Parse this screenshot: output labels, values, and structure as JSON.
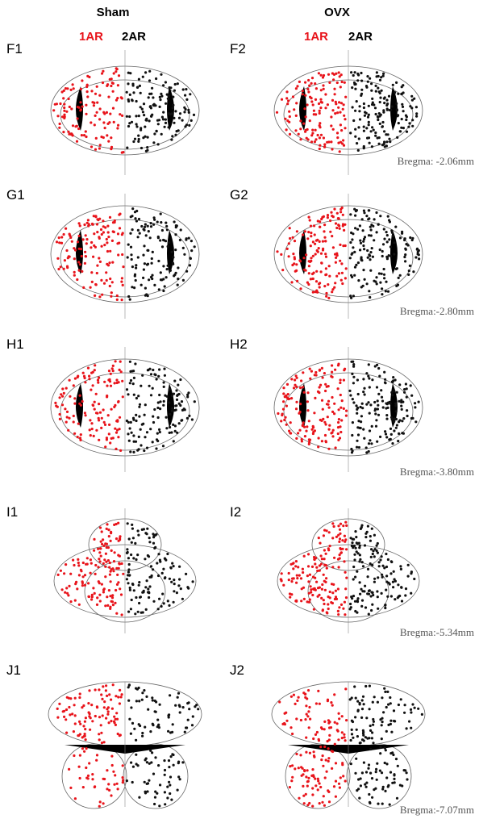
{
  "header": {
    "columns": [
      {
        "title": "Sham",
        "legend": [
          "1AR",
          "2AR"
        ]
      },
      {
        "title": "OVX",
        "legend": [
          "1AR",
          "2AR"
        ]
      }
    ]
  },
  "rows": [
    {
      "labels": [
        "F1",
        "F2"
      ],
      "bregma": "Bregma: -2.06mm"
    },
    {
      "labels": [
        "G1",
        "G2"
      ],
      "bregma": "Bregma:-2.80mm"
    },
    {
      "labels": [
        "H1",
        "H2"
      ],
      "bregma": "Bregma:-3.80mm"
    },
    {
      "labels": [
        "I1",
        "I2"
      ],
      "bregma": "Bregma:-5.34mm"
    },
    {
      "labels": [
        "J1",
        "J2"
      ],
      "bregma": "Bregma:-7.07mm"
    }
  ]
}
